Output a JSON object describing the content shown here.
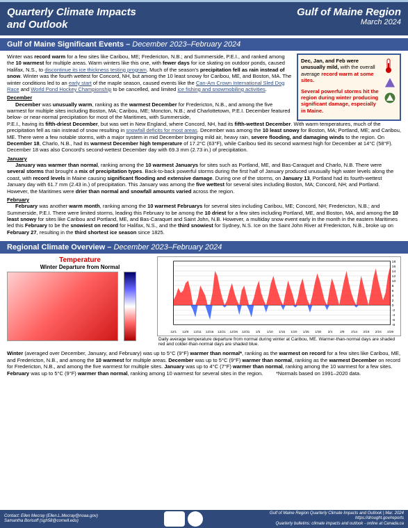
{
  "header": {
    "title_line1": "Quarterly Climate Impacts",
    "title_line2": "and Outlook",
    "region": "Gulf of Maine Region",
    "date": "March 2024"
  },
  "section1": {
    "title": "Gulf of Maine Significant Events –",
    "period": " December 2023–February 2024"
  },
  "intro": {
    "p1a": "Winter was ",
    "p1b": "record warm",
    "p1c": " for a few sites like Caribou, ME; Fredericton, N.B.; and Summerside, P.E.I., and ranked among the ",
    "p1d": "10 warmest",
    "p1e": " for multiple areas. Warm winters like this one, with ",
    "p1f": "fewer days",
    "p1g": " for ice skating on outdoor ponds, caused Halifax, N.S., to ",
    "link1": "discontinue its ice thickness testing program",
    "p1h": ". Much of the season's ",
    "p1i": "precipitation fell as rain instead of snow",
    "p1j": ". Winter was the fourth wettest for Concord, NH, but among the 10 least snowy for Caribou, ME, and Boston, MA. The winter conditions led to an ",
    "link2": "early start",
    "p1k": " of the maple season, caused events like the ",
    "link3": "Can-Am Crown International Sled Dog Race",
    "p1l": " and ",
    "link4": "World Pond Hockey Championship",
    "p1m": " to be cancelled, and limited ",
    "link5": "ice fishing and snowmobiling activities",
    "p1n": "."
  },
  "callout": {
    "l1a": "Dec, Jan, and Feb were unusually mild,",
    "l1b": " with the overall average ",
    "l1c": "record warm at some sites.",
    "l2a": "Several powerful storms hit the region during winter producing significant damage, especially in Maine."
  },
  "december": {
    "h": "December",
    "body": "December was unusually warm, ranking as the warmest December for Fredericton, N.B., and among the five warmest for multiple sites including Boston, MA; Caribou, ME; Moncton, N.B.; and Charlottetown, P.E.I. December featured below- or near-normal precipitation for most of the Maritimes, with Summerside, P.E.I., having its fifth-driest December, but was wet in New England, where Concord, NH, had its fifth-wettest December. With warm temperatures, much of the precipitation fell as rain instead of snow resulting in snowfall deficits for most areas. December was among the 10 least snowy for Boston, MA; Portland, ME; and Caribou, ME. There were a few notable storms, with a major system in mid December bringing mild air, heavy rain, severe flooding, and damaging winds to the region. On December 18, Charlo, N.B., had its warmest December high temperature of 17.2°C (63°F), while Caribou tied its second warmest high for December at 14°C (58°F). December 18 was also Concord's second-wettest December day with 69.3 mm (2.73 in.) of precipitation."
  },
  "january": {
    "h": "January",
    "body": "January was warmer than normal, ranking among the 10 warmest Januarys for sites such as Portland, ME, and Bas-Caraquet and Charlo, N.B. There were several storms that brought a mix of precipitation types. Back-to-back powerful storms during the first half of January produced unusually high water levels along the coast, with record levels in Maine causing significant flooding and extensive damage. During one of the storms, on January 13, Portland had its fourth-wettest January day with 61.7 mm (2.43 in.) of precipitation. This January was among the five wettest for several sites including Boston, MA; Concord, NH; and Portland. However, the Maritimes were drier than normal and snowfall amounts varied across the region."
  },
  "february": {
    "h": "February",
    "body": "February was another warm month, ranking among the 10 warmest Februarys for several sites including Caribou, ME; Concord, NH; Fredericton, N.B.; and Summerside, P.E.I. There were limited storms, leading this February to be among the 10 driest for a few sites including Portland, ME, and Boston, MA, and among the 10 least snowy for sites like Caribou and Portland, ME, and Bas-Caraquet and Saint John, N.B. However, a multiday snow event early in the month in the eastern Maritimes led this February to be the snowiest on record for Halifax, N.S., and the third snowiest for Sydney, N.S. Ice on the Saint John River at Fredericton, N.B., broke up on February 27, resulting in the third shortest ice season since 1825."
  },
  "section2": {
    "title": "Regional Climate Overview –",
    "period": " December 2023–February 2024"
  },
  "temp": {
    "title": "Temperature",
    "sub": "Winter Departure from Normal",
    "caption": "Daily average temperature departure from normal during winter at Caribou, ME. Warmer-than-normal days are shaded red and colder-than-normal days are shaded blue."
  },
  "summary": {
    "text": "Winter (averaged over December, January, and February) was up to 5°C (9°F) warmer than normal*, ranking as the warmest on record for a few sites like Caribou, ME, and Fredericton, N.B., and among the 10 warmest for multiple areas. December was up to 5°C (9°F) warmer than normal, ranking as the warmest December on record for Fredericton, N.B., and among the five warmest for multiple sites. January was up to 4°C (7°F) warmer than normal, ranking among the 10 warmest for a few sites. February was up to 5°C (9°F) warmer than normal, ranking among 10 warmest for several sites in the region.",
    "note": "*Normals based on 1991–2020 data."
  },
  "footer": {
    "contact1": "Contact:  Ellen Mecray (Ellen.L.Mecray@noaa.gov)",
    "contact2": "Samantha Borisoff (sgh58@cornell.edu)",
    "r1": "Gulf of Maine Region Quarterly Climate Impacts and Outlook | Mar. 2024",
    "r2": "https://drought.gov/reports",
    "r3": "Quarterly bulletins: climate impacts and outlook - online at Canada.ca"
  },
  "chart": {
    "xlabels": [
      "12/1",
      "12/6",
      "12/11",
      "12/16",
      "12/21",
      "12/26",
      "12/31",
      "1/5",
      "1/10",
      "1/15",
      "1/20",
      "1/25",
      "1/30",
      "2/4",
      "2/9",
      "2/14",
      "2/19",
      "2/24",
      "2/29"
    ],
    "yticks": [
      -8,
      -6,
      -4,
      -2,
      0,
      2,
      4,
      6,
      8,
      10,
      12,
      14,
      16,
      18
    ],
    "ymin": -8,
    "ymax": 18,
    "values": [
      2,
      4,
      7,
      5,
      6,
      9,
      10,
      6,
      -2,
      -5,
      3,
      8,
      6,
      4,
      -3,
      -6,
      5,
      14,
      12,
      7,
      3,
      -1,
      2,
      6,
      9,
      5,
      2,
      -4,
      6,
      8,
      4,
      -2,
      -5,
      3,
      7,
      10,
      5,
      2,
      -3,
      4,
      9,
      12,
      8,
      5,
      2,
      -2,
      5,
      10,
      7,
      4,
      -1,
      3,
      8,
      11,
      6,
      2,
      -3,
      4,
      9,
      13,
      10,
      6,
      2,
      -2,
      6,
      11,
      8,
      4,
      0,
      5,
      10,
      14,
      9,
      5,
      2,
      -1,
      6,
      12,
      8,
      4,
      0,
      5,
      11,
      15,
      10,
      6,
      2,
      5,
      12,
      16
    ],
    "pos_color": "#ff3030",
    "neg_color": "#3060ff",
    "grid_color": "#d0d0d0"
  }
}
